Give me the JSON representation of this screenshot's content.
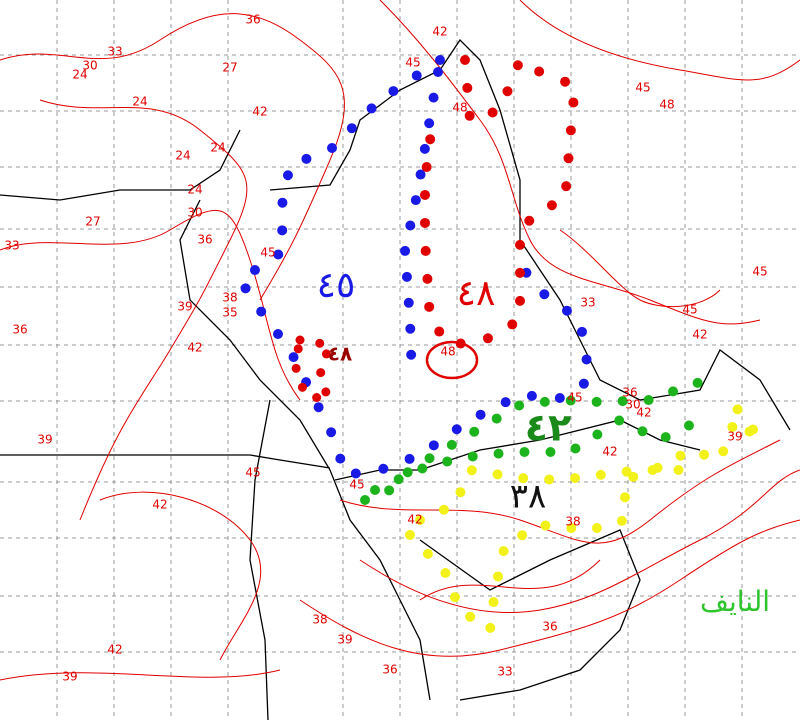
{
  "map": {
    "contour_labels": [
      36,
      33,
      30,
      24,
      27,
      24,
      42,
      24,
      24,
      24,
      27,
      30,
      36,
      33,
      45,
      39,
      38,
      35,
      36,
      42,
      39,
      45,
      42,
      42,
      39,
      38,
      39,
      36,
      33,
      36,
      38,
      42,
      45,
      42,
      42,
      36,
      30,
      39,
      45,
      42,
      48,
      45,
      48,
      45,
      45,
      42,
      33,
      48,
      45
    ],
    "regions": [
      {
        "label": "٤٥"
      },
      {
        "label": "٤٨"
      },
      {
        "label": "٤٨"
      },
      {
        "label": "٤٢"
      },
      {
        "label": "٣٨"
      }
    ],
    "credit": "النايف"
  }
}
